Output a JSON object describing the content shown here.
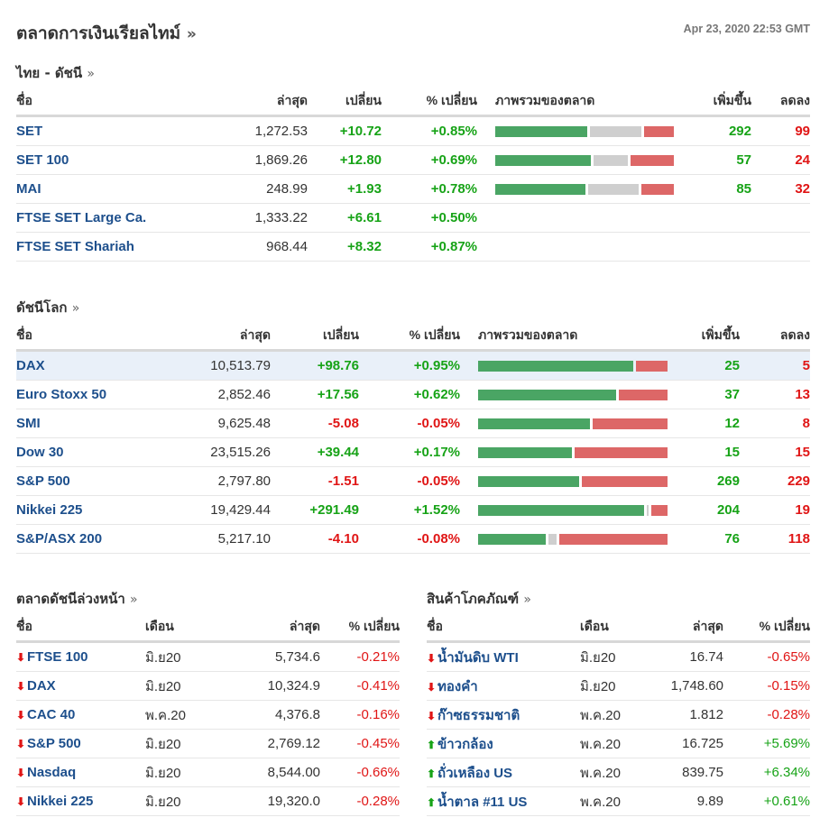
{
  "page": {
    "title": "ตลาดการเงินเรียลไทม์",
    "title_more": "»",
    "timestamp": "Apr 23, 2020 22:53 GMT"
  },
  "colors": {
    "up": "#17a317",
    "down": "#e01515",
    "link": "#1d4f8c",
    "bar_up": "#4aa564",
    "bar_flat": "#cfcfcf",
    "bar_down": "#dd6767",
    "highlight": "#e9f0f9"
  },
  "thai": {
    "heading": "ไทย - ดัชนี",
    "more": "»",
    "headers": {
      "name": "ชื่อ",
      "last": "ล่าสุด",
      "change": "เปลี่ยน",
      "pct": "% เปลี่ยน",
      "overview": "ภาพรวมของตลาด",
      "up": "เพิ่มขึ้น",
      "down": "ลดลง"
    },
    "rows": [
      {
        "name": "SET",
        "last": "1,272.53",
        "change": "+10.72",
        "pct": "+0.85%",
        "dir": "up",
        "breadth": {
          "up": 292,
          "flat": 0.3,
          "down": 99,
          "flat_frac": 0.3,
          "up_frac": 0.53,
          "down_frac": 0.17
        },
        "adv": "292",
        "dec": "99"
      },
      {
        "name": "SET 100",
        "last": "1,869.26",
        "change": "+12.80",
        "pct": "+0.69%",
        "dir": "up",
        "breadth": {
          "up_frac": 0.55,
          "flat_frac": 0.2,
          "down_frac": 0.25
        },
        "adv": "57",
        "dec": "24"
      },
      {
        "name": "MAI",
        "last": "248.99",
        "change": "+1.93",
        "pct": "+0.78%",
        "dir": "up",
        "breadth": {
          "up_frac": 0.52,
          "flat_frac": 0.29,
          "down_frac": 0.19
        },
        "adv": "85",
        "dec": "32"
      },
      {
        "name": "FTSE SET Large Ca.",
        "last": "1,333.22",
        "change": "+6.61",
        "pct": "+0.50%",
        "dir": "up",
        "breadth": null,
        "adv": "",
        "dec": ""
      },
      {
        "name": "FTSE SET Shariah",
        "last": "968.44",
        "change": "+8.32",
        "pct": "+0.87%",
        "dir": "up",
        "breadth": null,
        "adv": "",
        "dec": ""
      }
    ]
  },
  "world": {
    "heading": "ดัชนีโลก",
    "more": "»",
    "headers": {
      "name": "ชื่อ",
      "last": "ล่าสุด",
      "change": "เปลี่ยน",
      "pct": "% เปลี่ยน",
      "overview": "ภาพรวมของตลาด",
      "up": "เพิ่มขึ้น",
      "down": "ลดลง"
    },
    "rows": [
      {
        "name": "DAX",
        "last": "10,513.79",
        "change": "+98.76",
        "pct": "+0.95%",
        "dir": "up",
        "breadth": {
          "up_frac": 0.83,
          "flat_frac": 0.0,
          "down_frac": 0.17
        },
        "adv": "25",
        "dec": "5",
        "highlight": true
      },
      {
        "name": "Euro Stoxx 50",
        "last": "2,852.46",
        "change": "+17.56",
        "pct": "+0.62%",
        "dir": "up",
        "breadth": {
          "up_frac": 0.74,
          "flat_frac": 0.0,
          "down_frac": 0.26
        },
        "adv": "37",
        "dec": "13"
      },
      {
        "name": "SMI",
        "last": "9,625.48",
        "change": "-5.08",
        "pct": "-0.05%",
        "dir": "down",
        "breadth": {
          "up_frac": 0.6,
          "flat_frac": 0.0,
          "down_frac": 0.4
        },
        "adv": "12",
        "dec": "8"
      },
      {
        "name": "Dow 30",
        "last": "23,515.26",
        "change": "+39.44",
        "pct": "+0.17%",
        "dir": "up",
        "breadth": {
          "up_frac": 0.5,
          "flat_frac": 0.0,
          "down_frac": 0.5
        },
        "adv": "15",
        "dec": "15"
      },
      {
        "name": "S&P 500",
        "last": "2,797.80",
        "change": "-1.51",
        "pct": "-0.05%",
        "dir": "down",
        "breadth": {
          "up_frac": 0.54,
          "flat_frac": 0.0,
          "down_frac": 0.46
        },
        "adv": "269",
        "dec": "229"
      },
      {
        "name": "Nikkei 225",
        "last": "19,429.44",
        "change": "+291.49",
        "pct": "+1.52%",
        "dir": "up",
        "breadth": {
          "up_frac": 0.9,
          "flat_frac": 0.01,
          "down_frac": 0.09
        },
        "adv": "204",
        "dec": "19"
      },
      {
        "name": "S&P/ASX 200",
        "last": "5,217.10",
        "change": "-4.10",
        "pct": "-0.08%",
        "dir": "down",
        "breadth": {
          "up_frac": 0.37,
          "flat_frac": 0.04,
          "down_frac": 0.59
        },
        "adv": "76",
        "dec": "118"
      }
    ]
  },
  "futures": {
    "heading": "ตลาดดัชนีล่วงหน้า",
    "more": "»",
    "headers": {
      "name": "ชื่อ",
      "month": "เดือน",
      "last": "ล่าสุด",
      "pct": "% เปลี่ยน"
    },
    "rows": [
      {
        "name": "FTSE 100",
        "month": "มิ.ย20",
        "last": "5,734.6",
        "pct": "-0.21%",
        "dir": "down",
        "icon": "down-arrow-icon"
      },
      {
        "name": "DAX",
        "month": "มิ.ย20",
        "last": "10,324.9",
        "pct": "-0.41%",
        "dir": "down",
        "icon": "down-arrow-icon"
      },
      {
        "name": "CAC 40",
        "month": "พ.ค.20",
        "last": "4,376.8",
        "pct": "-0.16%",
        "dir": "down",
        "icon": "down-arrow-icon"
      },
      {
        "name": "S&P 500",
        "month": "มิ.ย20",
        "last": "2,769.12",
        "pct": "-0.45%",
        "dir": "down",
        "icon": "down-arrow-icon"
      },
      {
        "name": "Nasdaq",
        "month": "มิ.ย20",
        "last": "8,544.00",
        "pct": "-0.66%",
        "dir": "down",
        "icon": "down-arrow-icon"
      },
      {
        "name": "Nikkei 225",
        "month": "มิ.ย20",
        "last": "19,320.0",
        "pct": "-0.28%",
        "dir": "down",
        "icon": "down-arrow-icon"
      }
    ]
  },
  "commodities": {
    "heading": "สินค้าโภคภัณฑ์",
    "more": "»",
    "headers": {
      "name": "ชื่อ",
      "month": "เดือน",
      "last": "ล่าสุด",
      "pct": "% เปลี่ยน"
    },
    "rows": [
      {
        "name": "น้ำมันดิบ WTI",
        "month": "มิ.ย20",
        "last": "16.74",
        "pct": "-0.65%",
        "dir": "down",
        "icon": "down-arrow-icon"
      },
      {
        "name": "ทองคำ",
        "month": "มิ.ย20",
        "last": "1,748.60",
        "pct": "-0.15%",
        "dir": "down",
        "icon": "down-arrow-icon"
      },
      {
        "name": "ก๊าซธรรมชาติ",
        "month": "พ.ค.20",
        "last": "1.812",
        "pct": "-0.28%",
        "dir": "down",
        "icon": "down-arrow-icon"
      },
      {
        "name": "ข้าวกล้อง",
        "month": "พ.ค.20",
        "last": "16.725",
        "pct": "+5.69%",
        "dir": "up",
        "icon": "up-arrow-icon"
      },
      {
        "name": "ถั่วเหลือง US",
        "month": "พ.ค.20",
        "last": "839.75",
        "pct": "+6.34%",
        "dir": "up",
        "icon": "up-arrow-icon"
      },
      {
        "name": "น้ำตาล #11 US",
        "month": "พ.ค.20",
        "last": "9.89",
        "pct": "+0.61%",
        "dir": "up",
        "icon": "up-arrow-icon"
      }
    ]
  }
}
